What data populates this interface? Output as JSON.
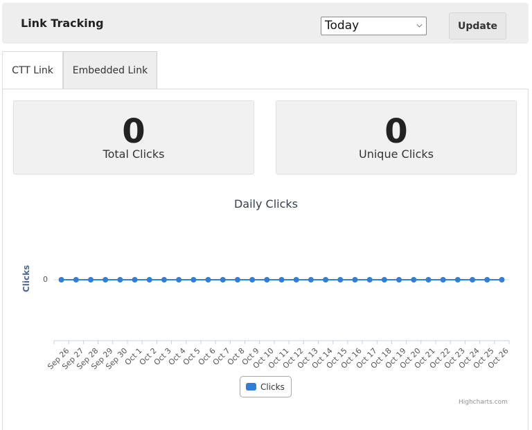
{
  "header": {
    "title": "Link Tracking",
    "range_select": {
      "value": "Today"
    },
    "update_label": "Update"
  },
  "tabs": [
    {
      "label": "CTT Link",
      "active": true
    },
    {
      "label": "Embedded Link",
      "active": false
    }
  ],
  "stats": {
    "total": {
      "value": "0",
      "label": "Total Clicks"
    },
    "unique": {
      "value": "0",
      "label": "Unique Clicks"
    }
  },
  "colors": {
    "series": "#2f7ed8",
    "header_bg": "#eeeeee",
    "stat_bg": "#f1f1f1"
  },
  "chart": {
    "title": "Daily Clicks",
    "y_title": "Clicks",
    "y_tick": "0",
    "legend_label": "Clicks",
    "credits": "Highcharts.com"
  },
  "chart_data": {
    "type": "line",
    "title": "Daily Clicks",
    "xlabel": "",
    "ylabel": "Clicks",
    "categories": [
      "Sep 26",
      "Sep 27",
      "Sep 28",
      "Sep 29",
      "Sep 30",
      "Oct 1",
      "Oct 2",
      "Oct 3",
      "Oct 4",
      "Oct 5",
      "Oct 6",
      "Oct 7",
      "Oct 8",
      "Oct 9",
      "Oct 10",
      "Oct 11",
      "Oct 12",
      "Oct 13",
      "Oct 14",
      "Oct 15",
      "Oct 16",
      "Oct 17",
      "Oct 18",
      "Oct 19",
      "Oct 20",
      "Oct 21",
      "Oct 22",
      "Oct 23",
      "Oct 24",
      "Oct 25",
      "Oct 26"
    ],
    "series": [
      {
        "name": "Clicks",
        "values": [
          0,
          0,
          0,
          0,
          0,
          0,
          0,
          0,
          0,
          0,
          0,
          0,
          0,
          0,
          0,
          0,
          0,
          0,
          0,
          0,
          0,
          0,
          0,
          0,
          0,
          0,
          0,
          0,
          0,
          0,
          0
        ]
      }
    ],
    "y_ticks": [
      0
    ],
    "legend_position": "bottom-center",
    "grid": true
  }
}
